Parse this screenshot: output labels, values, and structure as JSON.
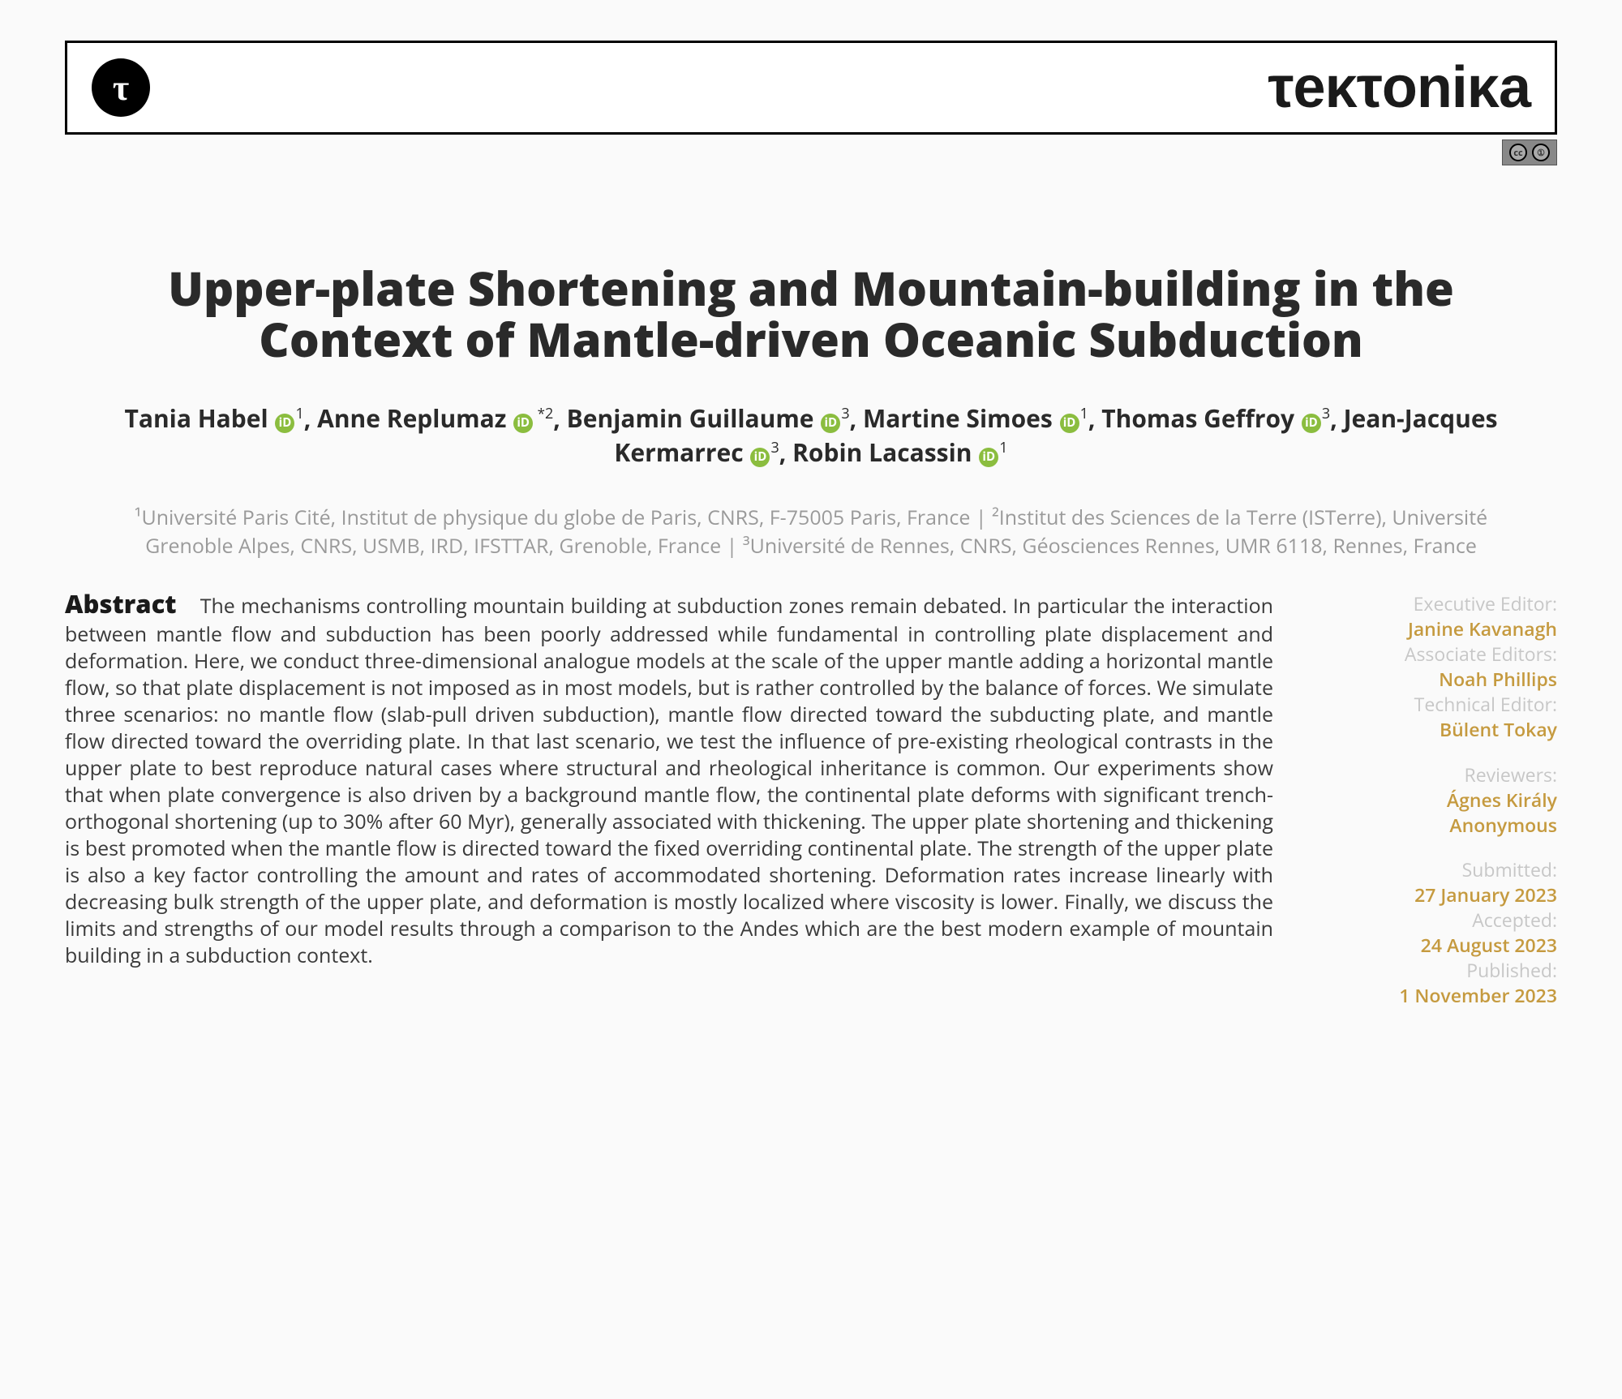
{
  "header": {
    "logo_letter": "τ",
    "journal": "τeκτoniκa"
  },
  "license": {
    "cc": "cc",
    "by": "①"
  },
  "title": "Upper-plate Shortening and Mountain-building in the Context of Mantle-driven Oceanic Subduction",
  "authors": [
    {
      "name": "Tania Habel",
      "sup": "1",
      "star": ""
    },
    {
      "name": "Anne Replumaz",
      "sup": "2",
      "star": " *"
    },
    {
      "name": "Benjamin Guillaume",
      "sup": "3",
      "star": ""
    },
    {
      "name": "Martine Simoes",
      "sup": "1",
      "star": ""
    },
    {
      "name": "Thomas Geffroy",
      "sup": "3",
      "star": ""
    },
    {
      "name": "Jean-Jacques Kermarrec",
      "sup": "3",
      "star": ""
    },
    {
      "name": "Robin Lacassin",
      "sup": "1",
      "star": ""
    }
  ],
  "affiliations": "¹Université Paris Cité, Institut de physique du globe de Paris, CNRS, F-75005 Paris, France | ²Institut des Sciences de la Terre (ISTerre), Université Grenoble Alpes, CNRS, USMB, IRD, IFSTTAR, Grenoble, France | ³Université de Rennes, CNRS, Géosciences Rennes, UMR 6118, Rennes, France",
  "abstract_label": "Abstract",
  "abstract_text": "The mechanisms controlling mountain building at subduction zones remain debated.  In particular the interaction between mantle flow and subduction has been poorly addressed while fundamental in controlling plate displacement and deformation.  Here, we conduct three-dimensional analogue models at the scale of the upper mantle adding a horizontal mantle flow, so that plate displacement is not imposed as in most models, but is rather controlled by the balance of forces. We simulate three scenarios: no mantle flow (slab-pull driven subduction), mantle flow directed toward the subducting plate, and mantle flow directed toward the overriding plate. In that last scenario, we test the influence of pre-existing rheological contrasts in the upper plate to best reproduce natural cases where structural and rheological inheritance is common. Our experiments show that when plate convergence is also driven by a background mantle flow, the continental plate deforms with significant trench-orthogonal shortening (up to 30% after 60 Myr), generally associated with thickening. The upper plate shortening and thickening is best promoted when the mantle flow is directed toward the fixed overriding continental plate.  The strength of the upper plate is also a key factor controlling the amount and rates of accommodated shortening. Deformation rates increase linearly with decreasing bulk strength of the upper plate, and deformation is mostly localized where viscosity is lower. Finally, we discuss the limits and strengths of our model results through a comparison to the Andes which are the best modern example of mountain building in a subduction context.",
  "meta": {
    "exec_label": "Executive Editor:",
    "exec_value": "Janine Kavanagh",
    "assoc_label": "Associate Editors:",
    "assoc_value": "Noah Phillips",
    "tech_label": "Technical Editor:",
    "tech_value": "Bülent Tokay",
    "rev_label": "Reviewers:",
    "rev_value1": "Ágnes Király",
    "rev_value2": "Anonymous",
    "sub_label": "Submitted:",
    "sub_value": "27 January 2023",
    "acc_label": "Accepted:",
    "acc_value": "24 August 2023",
    "pub_label": "Published:",
    "pub_value": "1 November 2023"
  },
  "colors": {
    "orcid": "#8bbd3f",
    "meta_value": "#c59a3f",
    "text": "#3a3a3a",
    "muted": "#9a9a9a"
  }
}
